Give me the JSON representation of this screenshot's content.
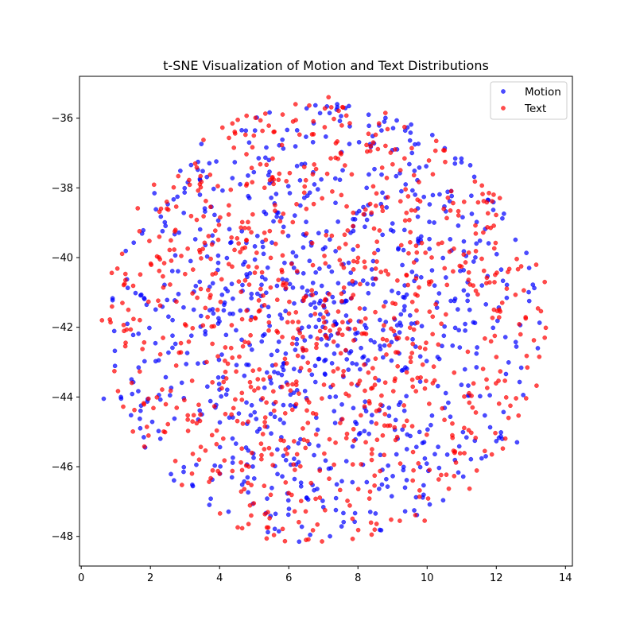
{
  "chart_data": {
    "type": "scatter",
    "title": "t-SNE Visualization of Motion and Text Distributions",
    "xlabel": "",
    "ylabel": "",
    "xlim": [
      -0.05,
      14.2
    ],
    "ylim": [
      -48.85,
      -34.8
    ],
    "xticks": [
      0,
      2,
      4,
      6,
      8,
      10,
      12,
      14
    ],
    "yticks": [
      -48,
      -46,
      -44,
      -42,
      -40,
      -38,
      -36
    ],
    "grid": false,
    "legend_position": "top-right",
    "series": [
      {
        "name": "Motion",
        "color": "#0000ff",
        "count": 900,
        "seed": 7,
        "center": [
          7.05,
          -41.9
        ],
        "radius": [
          6.3,
          6.3
        ]
      },
      {
        "name": "Text",
        "color": "#ff0000",
        "count": 900,
        "seed": 19,
        "center": [
          7.05,
          -41.9
        ],
        "radius": [
          6.4,
          6.4
        ]
      }
    ],
    "sample_points": {
      "Motion": [
        [
          0.65,
          -44.05
        ],
        [
          13.2,
          -42.6
        ],
        [
          7.4,
          -35.6
        ],
        [
          6.3,
          -48.15
        ],
        [
          12.6,
          -45.3
        ]
      ],
      "Text": [
        [
          0.6,
          -41.8
        ],
        [
          13.4,
          -42.3
        ],
        [
          7.15,
          -35.4
        ],
        [
          6.5,
          -48.1
        ],
        [
          13.4,
          -40.7
        ]
      ]
    }
  }
}
